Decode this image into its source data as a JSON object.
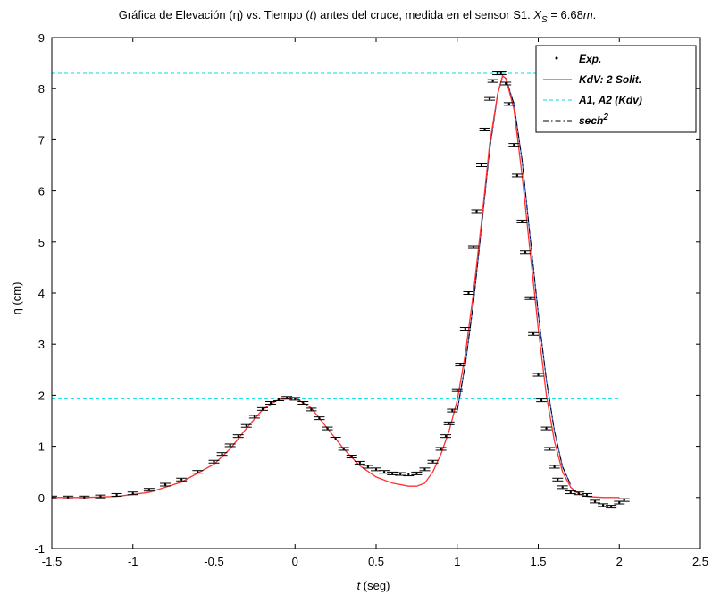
{
  "chart_data": {
    "type": "line",
    "title": {
      "prefix": "Gráfica  de Elevación (",
      "eta": "η",
      "mid": ") vs. Tiempo (",
      "t": "t",
      "suffix": ") antes del cruce, medida en el sensor S1.  ",
      "xs_symbol": "X",
      "xs_sub": "S",
      "xs_value": " = 6.68",
      "xs_unit": "m",
      "xs_end": "."
    },
    "xlabel": {
      "var": "t",
      "unit": " (seg)"
    },
    "ylabel": "η (cm)",
    "xlim": [
      -1.5,
      2.5
    ],
    "ylim": [
      -1,
      9
    ],
    "xticks": [
      -1.5,
      -1,
      -0.5,
      0,
      0.5,
      1,
      1.5,
      2,
      2.5
    ],
    "xtick_labels": [
      "-1.5",
      "-1",
      "-0.5",
      "0",
      "0.5",
      "1",
      "1.5",
      "2",
      "2.5"
    ],
    "yticks": [
      -1,
      0,
      1,
      2,
      3,
      4,
      5,
      6,
      7,
      8,
      9
    ],
    "ytick_labels": [
      "-1",
      "0",
      "1",
      "2",
      "3",
      "4",
      "5",
      "6",
      "7",
      "8",
      "9"
    ],
    "grid": false,
    "legend_position": "top-right",
    "legend": [
      {
        "label": "Exp.",
        "style": "dot"
      },
      {
        "label": "KdV: 2 Solit.",
        "style": "solid-red"
      },
      {
        "label": "A1, A2 (Kdv)",
        "style": "dashed-cyan"
      },
      {
        "label": "sech",
        "sup": "2",
        "style": "dashdot-black"
      }
    ],
    "colors": {
      "exp": "#000000",
      "kdv": "#ff3030",
      "amplitude": "#00dede",
      "sech2": "#000000",
      "fit": "#3a5fd0"
    },
    "amplitude_levels": [
      1.93,
      8.3
    ],
    "amplitude_x_range": [
      -1.5,
      2.0
    ],
    "series": [
      {
        "name": "Exp.",
        "x": [
          -1.5,
          -1.4,
          -1.3,
          -1.2,
          -1.1,
          -1.0,
          -0.9,
          -0.8,
          -0.7,
          -0.6,
          -0.5,
          -0.45,
          -0.4,
          -0.35,
          -0.3,
          -0.25,
          -0.2,
          -0.15,
          -0.1,
          -0.05,
          0.0,
          0.05,
          0.1,
          0.15,
          0.2,
          0.25,
          0.3,
          0.35,
          0.4,
          0.45,
          0.5,
          0.55,
          0.6,
          0.65,
          0.7,
          0.75,
          0.8,
          0.85,
          0.9,
          0.93,
          0.95,
          0.97,
          1.0,
          1.02,
          1.05,
          1.07,
          1.1,
          1.12,
          1.15,
          1.17,
          1.2,
          1.22,
          1.25,
          1.27,
          1.3,
          1.32,
          1.35,
          1.37,
          1.4,
          1.42,
          1.45,
          1.47,
          1.5,
          1.52,
          1.55,
          1.57,
          1.6,
          1.62,
          1.65,
          1.7,
          1.75,
          1.8,
          1.85,
          1.9,
          1.95,
          2.0,
          2.03
        ],
        "y": [
          0.0,
          0.0,
          0.0,
          0.02,
          0.05,
          0.08,
          0.15,
          0.25,
          0.35,
          0.5,
          0.7,
          0.85,
          1.02,
          1.2,
          1.4,
          1.58,
          1.73,
          1.85,
          1.92,
          1.95,
          1.93,
          1.85,
          1.72,
          1.55,
          1.35,
          1.15,
          0.95,
          0.8,
          0.68,
          0.6,
          0.55,
          0.5,
          0.47,
          0.46,
          0.45,
          0.47,
          0.55,
          0.7,
          0.95,
          1.2,
          1.45,
          1.7,
          2.1,
          2.6,
          3.3,
          4.0,
          4.9,
          5.6,
          6.5,
          7.2,
          7.8,
          8.15,
          8.3,
          8.3,
          8.1,
          7.7,
          6.9,
          6.3,
          5.4,
          4.8,
          3.9,
          3.2,
          2.4,
          1.9,
          1.35,
          0.95,
          0.6,
          0.35,
          0.2,
          0.1,
          0.08,
          0.05,
          -0.08,
          -0.15,
          -0.18,
          -0.1,
          -0.05
        ]
      },
      {
        "name": "KdV: 2 Solit.",
        "x": [
          -1.5,
          -1.3,
          -1.1,
          -0.9,
          -0.7,
          -0.5,
          -0.4,
          -0.3,
          -0.2,
          -0.1,
          0.0,
          0.1,
          0.2,
          0.3,
          0.4,
          0.5,
          0.6,
          0.7,
          0.75,
          0.8,
          0.85,
          0.9,
          0.95,
          1.0,
          1.05,
          1.1,
          1.15,
          1.2,
          1.25,
          1.28,
          1.3,
          1.35,
          1.4,
          1.45,
          1.5,
          1.55,
          1.6,
          1.65,
          1.7,
          1.75,
          1.8,
          1.9,
          2.0
        ],
        "y": [
          0.0,
          0.0,
          0.02,
          0.1,
          0.3,
          0.65,
          0.95,
          1.35,
          1.72,
          1.92,
          1.95,
          1.75,
          1.35,
          0.95,
          0.62,
          0.4,
          0.28,
          0.22,
          0.22,
          0.28,
          0.5,
          0.85,
          1.3,
          1.9,
          2.8,
          4.0,
          5.4,
          6.9,
          7.9,
          8.25,
          8.2,
          7.6,
          6.3,
          4.8,
          3.3,
          2.0,
          1.1,
          0.5,
          0.2,
          0.07,
          0.02,
          0.0,
          0.0
        ]
      },
      {
        "name": "sech2",
        "x": [
          1.0,
          1.05,
          1.1,
          1.15,
          1.2,
          1.25,
          1.28,
          1.3,
          1.35,
          1.4,
          1.45,
          1.5,
          1.55,
          1.6,
          1.65,
          1.7
        ],
        "y": [
          1.7,
          2.6,
          3.8,
          5.3,
          6.8,
          7.9,
          8.25,
          8.2,
          7.7,
          6.6,
          5.1,
          3.6,
          2.3,
          1.3,
          0.6,
          0.25
        ]
      }
    ]
  }
}
